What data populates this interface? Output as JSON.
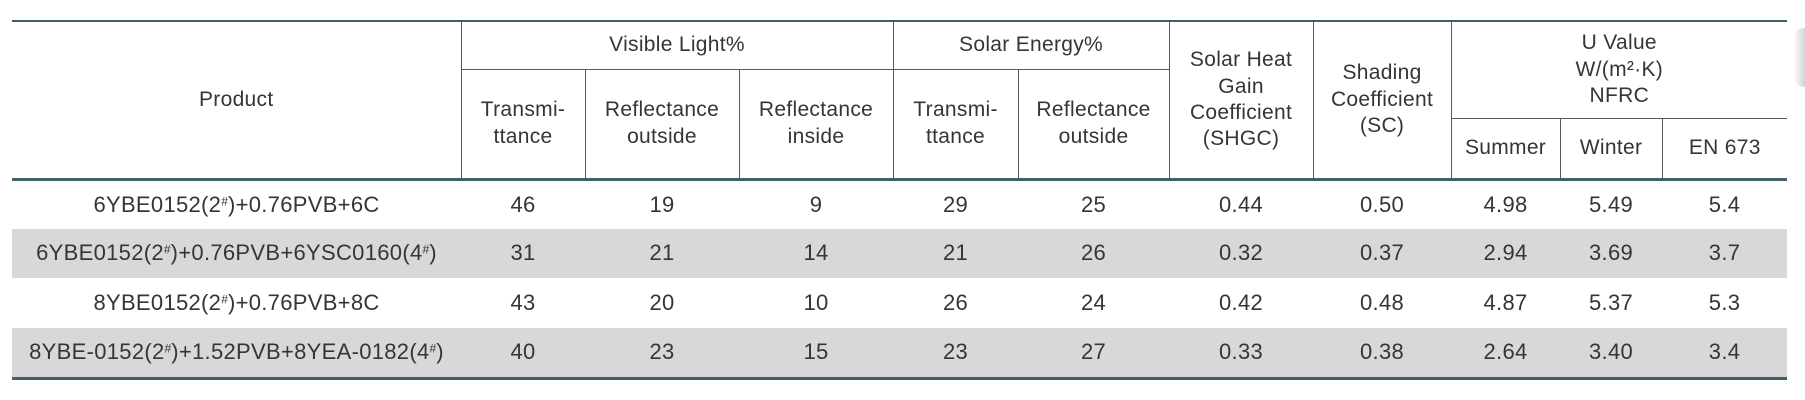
{
  "table": {
    "header": {
      "product": "Product",
      "visible_light_group": "Visible Light%",
      "solar_energy_group": "Solar Energy%",
      "shgc": "Solar Heat\nGain\nCoefficient\n(SHGC)",
      "sc": "Shading\nCoefficient\n(SC)",
      "u_value_group": "U Value\nW/(m²·K)\nNFRC",
      "vl_transmittance": "Transmi-\nttance",
      "vl_reflectance_outside": "Reflectance\noutside",
      "vl_reflectance_inside": "Reflectance\ninside",
      "se_transmittance": "Transmi-\nttance",
      "se_reflectance_outside": "Reflectance\noutside",
      "u_summer": "Summer",
      "u_winter": "Winter",
      "u_en673": "EN 673"
    },
    "rows": [
      {
        "product": "6YBE0152(2#)+0.76PVB+6C",
        "values": [
          "46",
          "19",
          "9",
          "29",
          "25",
          "0.44",
          "0.50",
          "4.98",
          "5.49",
          "5.4"
        ]
      },
      {
        "product": "6YBE0152(2#)+0.76PVB+6YSC0160(4#)",
        "values": [
          "31",
          "21",
          "14",
          "21",
          "26",
          "0.32",
          "0.37",
          "2.94",
          "3.69",
          "3.7"
        ]
      },
      {
        "product": "8YBE0152(2#)+0.76PVB+8C",
        "values": [
          "43",
          "20",
          "10",
          "26",
          "24",
          "0.42",
          "0.48",
          "4.87",
          "5.37",
          "5.3"
        ]
      },
      {
        "product": "8YBE-0152(2#)+1.52PVB+8YEA-0182(4#)",
        "values": [
          "40",
          "23",
          "15",
          "23",
          "27",
          "0.33",
          "0.38",
          "2.64",
          "3.40",
          "3.4"
        ]
      }
    ]
  },
  "colors": {
    "accent_line": "#41606e",
    "thin_line": "#55585c",
    "row_stripe": "#d8d8d8",
    "text": "#343539"
  }
}
